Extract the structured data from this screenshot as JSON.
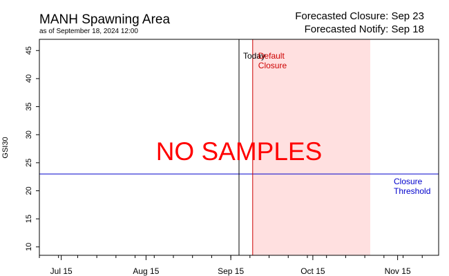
{
  "header": {
    "title": "MANH Spawning Area",
    "subtitle": "as of September 18, 2024 12:00",
    "closure_text": "Forecasted Closure: Sep 23",
    "notify_text": "Forecasted Notify: Sep 18"
  },
  "chart_data": {
    "type": "line",
    "title": "MANH Spawning Area",
    "xlabel": "",
    "ylabel": "GSI30",
    "xlim": [
      "2024-07-07",
      "2024-11-30"
    ],
    "ylim": [
      8.5,
      47
    ],
    "x_ticks": [
      {
        "date": "2024-07-15",
        "label": "Jul 15"
      },
      {
        "date": "2024-08-15",
        "label": "Aug 15"
      },
      {
        "date": "2024-09-15",
        "label": "Sep 15"
      },
      {
        "date": "2024-10-15",
        "label": "Oct 15"
      },
      {
        "date": "2024-11-15",
        "label": "Nov 15"
      }
    ],
    "y_ticks": [
      10,
      15,
      20,
      25,
      30,
      35,
      40,
      45
    ],
    "series": [],
    "annotations": {
      "no_data_text": "NO SAMPLES",
      "today_date": "2024-09-18",
      "today_label": "Today",
      "default_closure_date": "2024-09-23",
      "default_closure_label": [
        "Default",
        "Closure"
      ],
      "shaded_range": [
        "2024-09-23",
        "2024-11-05"
      ],
      "closure_threshold_value": 23,
      "closure_threshold_label": [
        "Closure",
        "Threshold"
      ]
    },
    "grid": false,
    "colors": {
      "today_line": "#000000",
      "default_closure": "#cc0000",
      "shaded_region": "#ffe0e0",
      "threshold": "#0000cc",
      "no_samples": "#ff0000"
    }
  }
}
